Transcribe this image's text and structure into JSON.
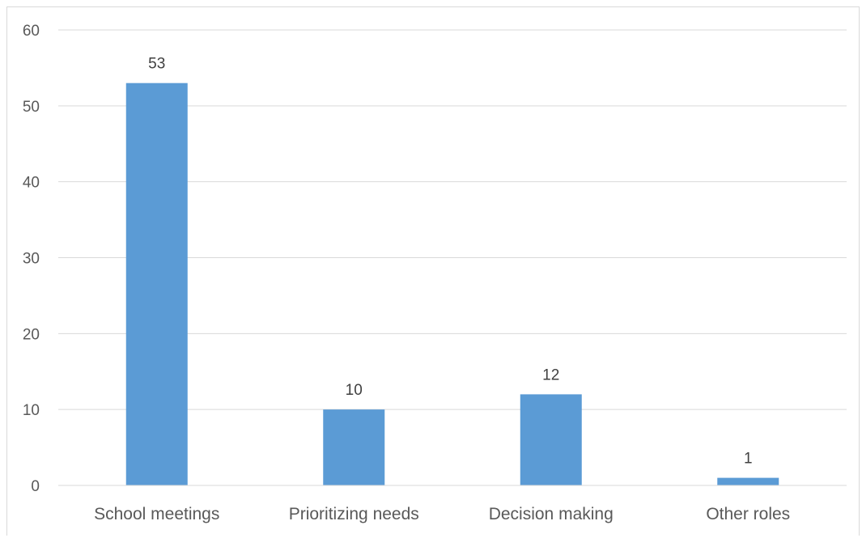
{
  "chart_data": {
    "type": "bar",
    "categories": [
      "School meetings",
      "Prioritizing needs",
      "Decision making",
      "Other roles"
    ],
    "values": [
      53,
      10,
      12,
      1
    ],
    "data_labels": [
      "53",
      "10",
      "12",
      "1"
    ],
    "yticks": [
      "0",
      "10",
      "20",
      "30",
      "40",
      "50",
      "60"
    ],
    "ylim": [
      0,
      60
    ],
    "title": "",
    "xlabel": "",
    "ylabel": "",
    "grid": true,
    "legend": "none",
    "bar_color": "#5b9bd5",
    "grid_color": "#d9d9d9"
  }
}
